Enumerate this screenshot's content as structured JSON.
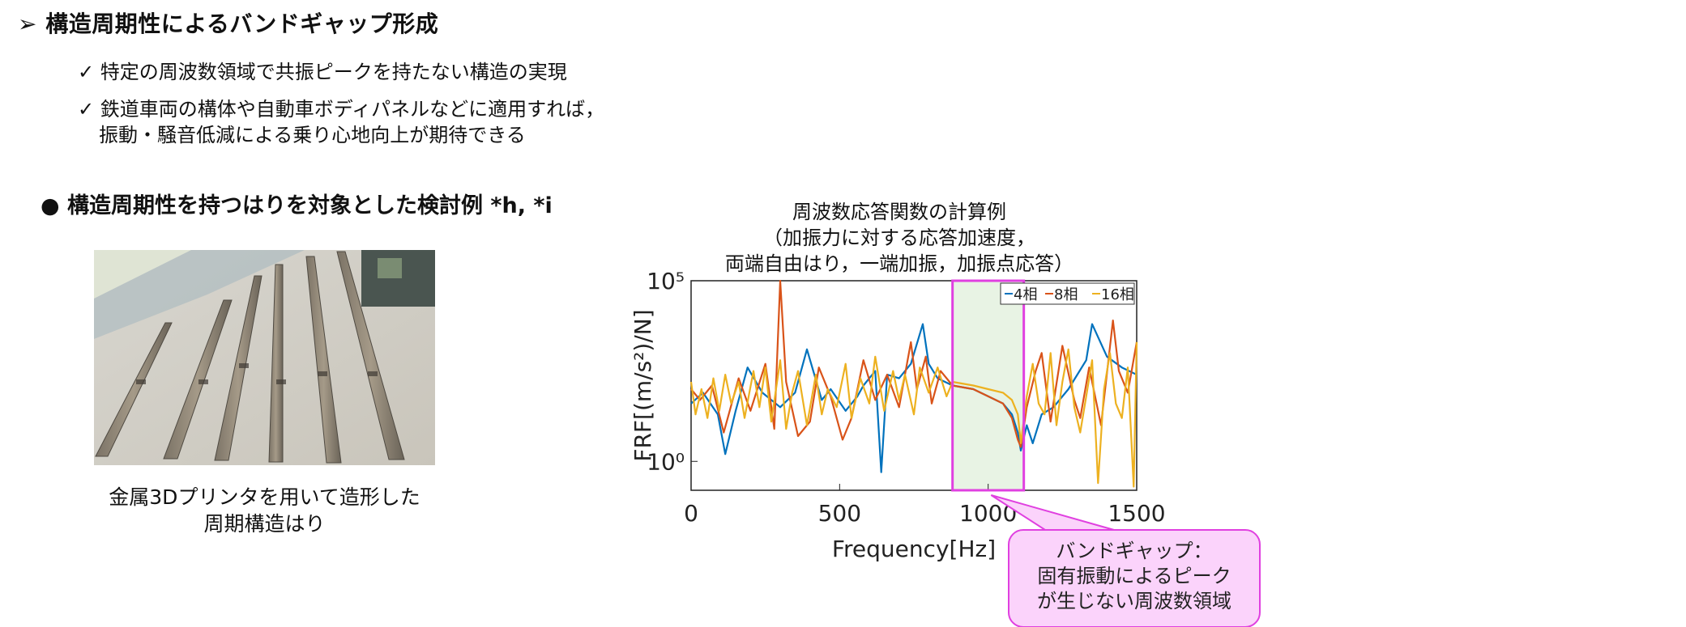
{
  "heading": "構造周期性によるバンドギャップ形成",
  "bullets": [
    {
      "mark": "✓",
      "text": "特定の周波数領域で共振ピークを持たない構造の実現"
    },
    {
      "mark": "✓",
      "text": "鉄道車両の構体や自動車ボディパネルなどに適用すれば，",
      "text2": "振動・騒音低減による乗り心地向上が期待できる"
    }
  ],
  "subheading": "● 構造周期性を持つはりを対象とした検討例 *h, *i",
  "photo_caption": [
    "金属3Dプリンタを用いて造形した",
    "周期構造はり"
  ],
  "chart_title": [
    "周波数応答関数の計算例",
    "（加振力に対する応答加速度，",
    "両端自由はり，一端加振，加振点応答）"
  ],
  "callout": [
    "バンドギャップ：",
    "固有振動によるピーク",
    "が生じない周波数領域"
  ],
  "colors": {
    "series_4": "#0072BD",
    "series_8": "#D95319",
    "series_16": "#EDB120",
    "highlight": "#e040e0",
    "band_fill": "#e8f3e4",
    "callout_fill": "#fbd3fb"
  },
  "chart_data": {
    "type": "line",
    "xlabel": "Frequency[Hz]",
    "ylabel": "FRF[(m/s²)/N]",
    "xlim": [
      0,
      1500
    ],
    "ylim_log10": [
      -0.8,
      5
    ],
    "y_scale": "log",
    "xticks": [
      0,
      500,
      1000,
      1500
    ],
    "yticks": [
      "10⁰",
      "10⁵"
    ],
    "legend": {
      "placement": "top-right",
      "entries": [
        "4相",
        "8相",
        "16相"
      ]
    },
    "band_gap": [
      880,
      1120
    ],
    "series": [
      {
        "name": "4相",
        "x": [
          0,
          40,
          90,
          115,
          150,
          190,
          240,
          300,
          350,
          390,
          440,
          470,
          520,
          560,
          580,
          620,
          640,
          660,
          700,
          740,
          780,
          800,
          830,
          880,
          950,
          1000,
          1050,
          1080,
          1100,
          1110,
          1130,
          1150,
          1180,
          1220,
          1270,
          1330,
          1350,
          1400,
          1450,
          1500
        ],
        "y_log10": [
          1.6,
          1.9,
          1.3,
          0.2,
          1.4,
          2.6,
          1.9,
          1.5,
          1.9,
          3.1,
          1.7,
          2.0,
          1.4,
          1.8,
          2.1,
          2.5,
          -0.3,
          2.4,
          2.3,
          2.7,
          3.8,
          2.7,
          2.3,
          2.1,
          2.0,
          1.8,
          1.6,
          1.3,
          0.8,
          0.3,
          1.0,
          0.5,
          1.3,
          1.5,
          2.0,
          2.8,
          3.8,
          2.9,
          2.6,
          2.4
        ]
      },
      {
        "name": "8相",
        "x": [
          0,
          30,
          70,
          110,
          160,
          200,
          250,
          280,
          300,
          320,
          360,
          400,
          430,
          470,
          510,
          540,
          580,
          620,
          660,
          700,
          740,
          760,
          790,
          810,
          840,
          880,
          950,
          1000,
          1050,
          1080,
          1100,
          1110,
          1130,
          1160,
          1180,
          1210,
          1250,
          1290,
          1310,
          1340,
          1380,
          1420,
          1440,
          1470,
          1500
        ],
        "y_log10": [
          2.0,
          1.7,
          2.1,
          0.8,
          2.3,
          1.4,
          2.7,
          0.9,
          5.0,
          2.2,
          0.7,
          1.1,
          2.6,
          1.8,
          0.6,
          1.2,
          2.8,
          1.7,
          2.4,
          1.5,
          3.3,
          2.0,
          2.9,
          1.6,
          2.5,
          2.1,
          2.0,
          1.8,
          1.6,
          1.2,
          0.6,
          0.4,
          1.5,
          2.5,
          3.0,
          1.1,
          3.2,
          1.7,
          1.2,
          2.6,
          1.0,
          3.9,
          2.5,
          1.9,
          3.3
        ]
      },
      {
        "name": "16相",
        "x": [
          0,
          15,
          35,
          55,
          75,
          95,
          115,
          135,
          160,
          180,
          210,
          230,
          250,
          270,
          300,
          320,
          340,
          360,
          390,
          420,
          440,
          460,
          490,
          520,
          540,
          570,
          600,
          620,
          650,
          680,
          700,
          720,
          750,
          770,
          800,
          830,
          860,
          880,
          950,
          1000,
          1050,
          1080,
          1100,
          1110,
          1130,
          1150,
          1170,
          1190,
          1210,
          1230,
          1250,
          1270,
          1290,
          1310,
          1330,
          1350,
          1370,
          1390,
          1410,
          1430,
          1450,
          1470,
          1490,
          1500
        ],
        "y_log10": [
          2.2,
          1.3,
          2.0,
          1.2,
          2.3,
          1.4,
          2.4,
          1.6,
          2.2,
          1.2,
          2.5,
          1.5,
          2.6,
          1.1,
          2.8,
          0.9,
          1.9,
          2.5,
          1.0,
          2.4,
          1.3,
          2.0,
          1.5,
          2.7,
          1.2,
          2.3,
          1.6,
          2.9,
          1.4,
          2.5,
          1.7,
          2.4,
          1.3,
          2.6,
          1.9,
          2.6,
          1.8,
          2.2,
          2.1,
          2.0,
          1.9,
          1.7,
          1.3,
          0.5,
          1.8,
          2.7,
          1.6,
          1.3,
          3.0,
          1.0,
          2.2,
          3.1,
          1.5,
          0.8,
          1.8,
          2.8,
          -0.6,
          2.0,
          3.0,
          1.6,
          1.2,
          2.6,
          -0.7,
          3.3
        ]
      }
    ]
  }
}
